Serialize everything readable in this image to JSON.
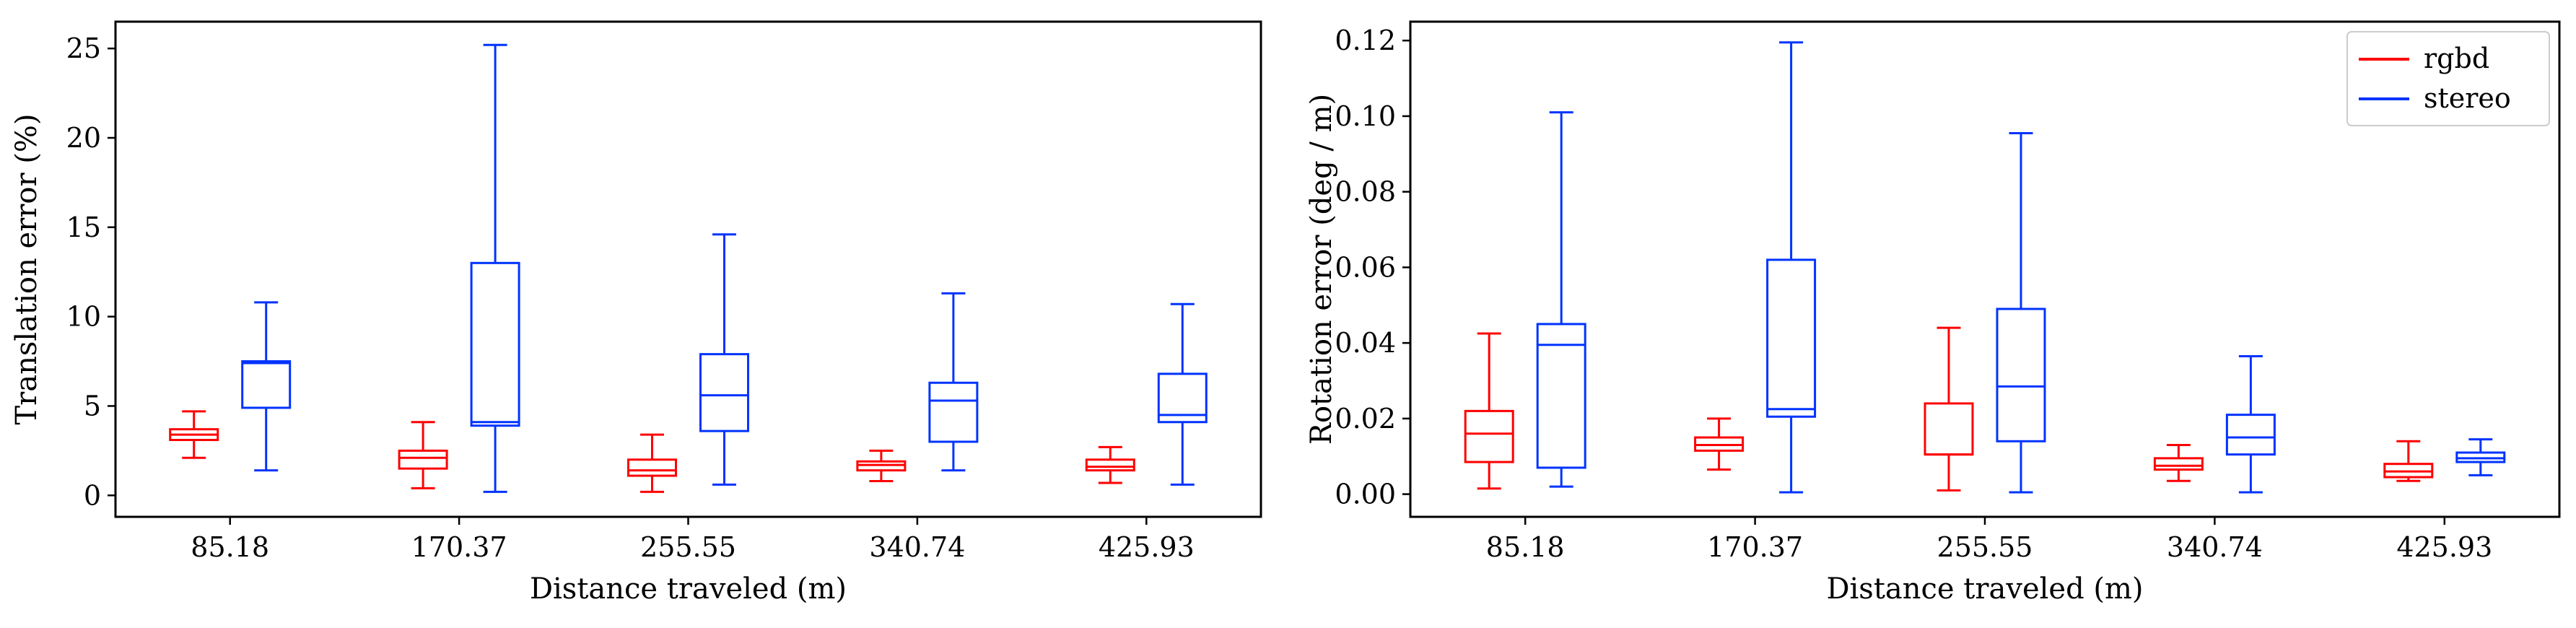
{
  "chart_data": [
    {
      "type": "box",
      "categories": [
        "85.18",
        "170.37",
        "255.55",
        "340.74",
        "425.93"
      ],
      "xlabel": "Distance traveled (m)",
      "ylabel": "Translation error (%)",
      "ylim": [
        -1.2,
        26.5
      ],
      "yticks": [
        0,
        5,
        10,
        15,
        20,
        25
      ],
      "ytick_format": 0,
      "legend": null,
      "series": [
        {
          "name": "rgbd",
          "color": "#ff0000",
          "boxes": [
            {
              "whislo": 2.1,
              "q1": 3.1,
              "med": 3.4,
              "q3": 3.7,
              "whishi": 4.7
            },
            {
              "whislo": 0.4,
              "q1": 1.5,
              "med": 2.1,
              "q3": 2.5,
              "whishi": 4.1
            },
            {
              "whislo": 0.2,
              "q1": 1.1,
              "med": 1.4,
              "q3": 2.0,
              "whishi": 3.4
            },
            {
              "whislo": 0.8,
              "q1": 1.4,
              "med": 1.7,
              "q3": 1.9,
              "whishi": 2.5
            },
            {
              "whislo": 0.7,
              "q1": 1.4,
              "med": 1.6,
              "q3": 2.0,
              "whishi": 2.7
            }
          ]
        },
        {
          "name": "stereo",
          "color": "#0033ff",
          "boxes": [
            {
              "whislo": 1.4,
              "q1": 4.9,
              "med": 7.4,
              "q3": 7.5,
              "whishi": 10.8
            },
            {
              "whislo": 0.2,
              "q1": 3.9,
              "med": 4.1,
              "q3": 13.0,
              "whishi": 25.2
            },
            {
              "whislo": 0.6,
              "q1": 3.6,
              "med": 5.6,
              "q3": 7.9,
              "whishi": 14.6
            },
            {
              "whislo": 1.4,
              "q1": 3.0,
              "med": 5.3,
              "q3": 6.3,
              "whishi": 11.3
            },
            {
              "whislo": 0.6,
              "q1": 4.1,
              "med": 4.5,
              "q3": 6.8,
              "whishi": 10.7
            }
          ]
        }
      ]
    },
    {
      "type": "box",
      "categories": [
        "85.18",
        "170.37",
        "255.55",
        "340.74",
        "425.93"
      ],
      "xlabel": "Distance traveled (m)",
      "ylabel": "Rotation error (deg / m)",
      "ylim": [
        -0.006,
        0.125
      ],
      "yticks": [
        0.0,
        0.02,
        0.04,
        0.06,
        0.08,
        0.1,
        0.12
      ],
      "ytick_format": 2,
      "legend": "top-right",
      "series": [
        {
          "name": "rgbd",
          "color": "#ff0000",
          "boxes": [
            {
              "whislo": 0.0015,
              "q1": 0.0085,
              "med": 0.016,
              "q3": 0.022,
              "whishi": 0.0425
            },
            {
              "whislo": 0.0065,
              "q1": 0.0115,
              "med": 0.013,
              "q3": 0.015,
              "whishi": 0.02
            },
            {
              "whislo": 0.001,
              "q1": 0.0105,
              "med": 0.0105,
              "q3": 0.024,
              "whishi": 0.044
            },
            {
              "whislo": 0.0035,
              "q1": 0.0065,
              "med": 0.0075,
              "q3": 0.0095,
              "whishi": 0.013
            },
            {
              "whislo": 0.0035,
              "q1": 0.0045,
              "med": 0.006,
              "q3": 0.008,
              "whishi": 0.014
            }
          ]
        },
        {
          "name": "stereo",
          "color": "#0033ff",
          "boxes": [
            {
              "whislo": 0.002,
              "q1": 0.007,
              "med": 0.0395,
              "q3": 0.045,
              "whishi": 0.101
            },
            {
              "whislo": 0.0005,
              "q1": 0.0205,
              "med": 0.0225,
              "q3": 0.062,
              "whishi": 0.1195
            },
            {
              "whislo": 0.0005,
              "q1": 0.014,
              "med": 0.0285,
              "q3": 0.049,
              "whishi": 0.0955
            },
            {
              "whislo": 0.0005,
              "q1": 0.0105,
              "med": 0.015,
              "q3": 0.021,
              "whishi": 0.0365
            },
            {
              "whislo": 0.005,
              "q1": 0.0085,
              "med": 0.0095,
              "q3": 0.011,
              "whishi": 0.0145
            }
          ]
        }
      ]
    }
  ]
}
